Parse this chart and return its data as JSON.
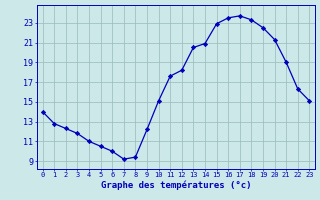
{
  "hours": [
    0,
    1,
    2,
    3,
    4,
    5,
    6,
    7,
    8,
    9,
    10,
    11,
    12,
    13,
    14,
    15,
    16,
    17,
    18,
    19,
    20,
    21,
    22,
    23
  ],
  "temps": [
    14.0,
    12.8,
    12.3,
    11.8,
    11.0,
    10.5,
    10.0,
    9.2,
    9.4,
    12.2,
    15.1,
    17.6,
    18.2,
    20.5,
    20.9,
    22.9,
    23.5,
    23.7,
    23.3,
    22.5,
    21.3,
    19.0,
    16.3,
    15.1
  ],
  "bg_color": "#cce8e8",
  "line_color": "#0000bb",
  "marker_color": "#0000bb",
  "grid_color": "#99bbbb",
  "axis_label_color": "#0000bb",
  "tick_color": "#0000bb",
  "xlabel": "Graphe des températures (°c)",
  "ylabel_ticks": [
    9,
    11,
    13,
    15,
    17,
    19,
    21,
    23
  ],
  "ylim": [
    8.2,
    24.8
  ],
  "xlim": [
    -0.5,
    23.5
  ]
}
